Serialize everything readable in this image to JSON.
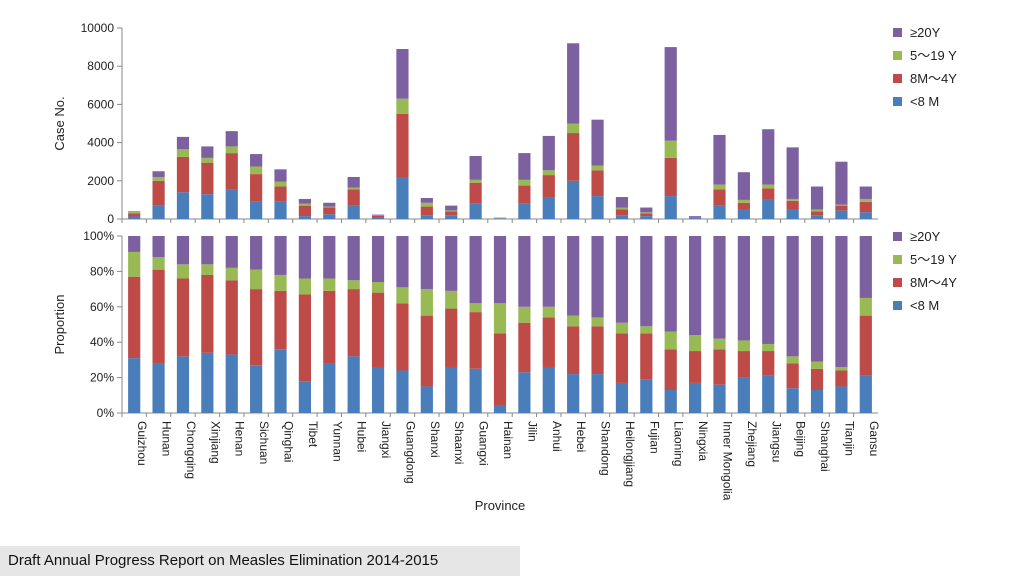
{
  "footer": {
    "text": "Draft Annual Progress Report on Measles Elimination 2014-2015"
  },
  "chart_data": [
    {
      "type": "bar",
      "stacked": true,
      "ylabel": "Case No.",
      "xlabel": "",
      "ylim": [
        0,
        10000
      ],
      "yticks": [
        "0",
        "2000",
        "4000",
        "6000",
        "8000",
        "10000"
      ],
      "grid": false,
      "legend": "right",
      "categories": [
        "Guizhou",
        "Hunan",
        "Chongqing",
        "Xinjiang",
        "Henan",
        "Sichuan",
        "Qinghai",
        "Tibet",
        "Yunnan",
        "Hubei",
        "Jiangxi",
        "Guangdong",
        "Shanxi",
        "Shaanxi",
        "Guangxi",
        "Hainan",
        "Jilin",
        "Anhui",
        "Hebei",
        "Shandong",
        "Heilongjiang",
        "Fujian",
        "Liaoning",
        "Ningxia",
        "Inner Mongolia",
        "Zhejiang",
        "Jiangsu",
        "Beijing",
        "Shanghai",
        "Tianjin",
        "Gansu"
      ],
      "series": [
        {
          "name": "<8 M",
          "color": "#4a7ebb",
          "values": [
            130,
            700,
            1400,
            1300,
            1550,
            900,
            900,
            150,
            250,
            700,
            80,
            2150,
            200,
            200,
            800,
            30,
            800,
            1150,
            2000,
            1200,
            200,
            150,
            1200,
            50,
            700,
            500,
            1000,
            500,
            200,
            450,
            350
          ]
        },
        {
          "name": "8M～4Y",
          "color": "#be4b48",
          "values": [
            170,
            1300,
            1850,
            1650,
            1900,
            1450,
            800,
            550,
            350,
            850,
            100,
            3350,
            450,
            200,
            1100,
            10,
            950,
            1150,
            2500,
            1350,
            300,
            150,
            2000,
            30,
            850,
            350,
            600,
            450,
            200,
            250,
            550
          ]
        },
        {
          "name": "5～19 Y",
          "color": "#98b954",
          "values": [
            60,
            200,
            400,
            250,
            350,
            400,
            250,
            100,
            50,
            100,
            20,
            800,
            200,
            50,
            150,
            10,
            300,
            250,
            500,
            250,
            100,
            50,
            900,
            10,
            250,
            150,
            200,
            100,
            100,
            50,
            150
          ]
        },
        {
          "name": "≥20Y",
          "color": "#7d60a0",
          "values": [
            40,
            300,
            650,
            600,
            800,
            650,
            650,
            250,
            200,
            550,
            30,
            2600,
            250,
            250,
            1250,
            20,
            1400,
            1800,
            4200,
            2400,
            550,
            250,
            4900,
            60,
            2600,
            1450,
            2900,
            2700,
            1200,
            2250,
            650
          ]
        }
      ]
    },
    {
      "type": "bar",
      "stacked": true,
      "ylabel": "Proportion",
      "xlabel": "Province",
      "ylim": [
        0,
        100
      ],
      "yticks": [
        "0%",
        "20%",
        "40%",
        "60%",
        "80%",
        "100%"
      ],
      "grid": false,
      "legend": "right",
      "categories": [
        "Guizhou",
        "Hunan",
        "Chongqing",
        "Xinjiang",
        "Henan",
        "Sichuan",
        "Qinghai",
        "Tibet",
        "Yunnan",
        "Hubei",
        "Jiangxi",
        "Guangdong",
        "Shanxi",
        "Shaanxi",
        "Guangxi",
        "Hainan",
        "Jilin",
        "Anhui",
        "Hebei",
        "Shandong",
        "Heilongjiang",
        "Fujian",
        "Liaoning",
        "Ningxia",
        "Inner Mongolia",
        "Zhejiang",
        "Jiangsu",
        "Beijing",
        "Shanghai",
        "Tianjin",
        "Gansu"
      ],
      "series": [
        {
          "name": "<8 M",
          "color": "#4a7ebb",
          "values": [
            31,
            28,
            32,
            34,
            33,
            27,
            36,
            18,
            28,
            32,
            26,
            24,
            15,
            26,
            25,
            4,
            23,
            26,
            22,
            22,
            17,
            19,
            13,
            17,
            16,
            20,
            21,
            14,
            13,
            15,
            21
          ]
        },
        {
          "name": "8M～4Y",
          "color": "#be4b48",
          "values": [
            46,
            53,
            44,
            44,
            42,
            43,
            33,
            49,
            41,
            38,
            42,
            38,
            40,
            33,
            32,
            41,
            28,
            28,
            27,
            27,
            28,
            26,
            23,
            18,
            20,
            15,
            14,
            14,
            12,
            9,
            34
          ]
        },
        {
          "name": "5～19 Y",
          "color": "#98b954",
          "values": [
            14,
            7,
            8,
            6,
            7,
            11,
            9,
            9,
            7,
            5,
            6,
            9,
            15,
            10,
            5,
            17,
            9,
            6,
            6,
            5,
            6,
            4,
            10,
            9,
            6,
            6,
            4,
            4,
            4,
            2,
            10
          ]
        },
        {
          "name": "≥20Y",
          "color": "#7d60a0",
          "values": [
            9,
            12,
            16,
            16,
            18,
            19,
            22,
            24,
            24,
            25,
            26,
            29,
            30,
            31,
            38,
            38,
            40,
            40,
            45,
            46,
            49,
            51,
            54,
            56,
            58,
            59,
            61,
            68,
            71,
            74,
            35
          ]
        }
      ]
    }
  ]
}
